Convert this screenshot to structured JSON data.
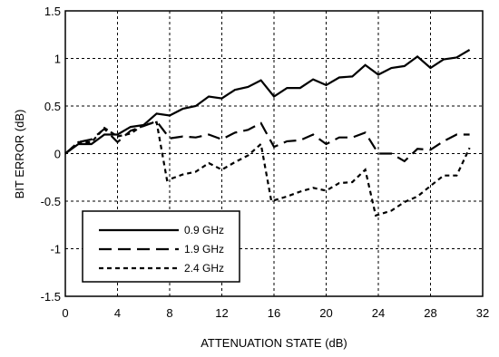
{
  "chart_data": {
    "type": "line",
    "xlabel": "ATTENUATION STATE (dB)",
    "ylabel": "BIT ERROR (dB)",
    "xlim": [
      0,
      32
    ],
    "ylim": [
      -1.5,
      1.5
    ],
    "xticks": [
      "0",
      "4",
      "8",
      "12",
      "16",
      "20",
      "24",
      "28",
      "32"
    ],
    "yticks": [
      "1.5",
      "1",
      "0.5",
      "0",
      "-0.5",
      "-1",
      "-1.5"
    ],
    "grid": true,
    "legend_position": "bottom-left",
    "series": [
      {
        "name": "0.9 GHz",
        "style": "solid",
        "color": "#000000",
        "x": [
          0,
          1,
          2,
          3,
          4,
          5,
          6,
          7,
          8,
          9,
          10,
          11,
          12,
          13,
          14,
          15,
          16,
          17,
          18,
          19,
          20,
          21,
          22,
          23,
          24,
          25,
          26,
          27,
          28,
          29,
          30,
          31
        ],
        "y": [
          0,
          0.1,
          0.1,
          0.2,
          0.2,
          0.28,
          0.3,
          0.42,
          0.4,
          0.47,
          0.5,
          0.6,
          0.58,
          0.67,
          0.7,
          0.77,
          0.6,
          0.69,
          0.69,
          0.78,
          0.72,
          0.8,
          0.81,
          0.93,
          0.83,
          0.9,
          0.92,
          1.02,
          0.9,
          0.99,
          1.01,
          1.09
        ]
      },
      {
        "name": "1.9 GHz",
        "style": "long-dash",
        "color": "#000000",
        "x": [
          0,
          1,
          2,
          3,
          4,
          5,
          6,
          7,
          8,
          9,
          10,
          11,
          12,
          13,
          14,
          15,
          16,
          17,
          18,
          19,
          20,
          21,
          22,
          23,
          24,
          25,
          26,
          27,
          28,
          29,
          30,
          31
        ],
        "y": [
          0,
          0.12,
          0.15,
          0.26,
          0.12,
          0.24,
          0.29,
          0.34,
          0.16,
          0.18,
          0.17,
          0.2,
          0.15,
          0.22,
          0.25,
          0.32,
          0.07,
          0.13,
          0.14,
          0.2,
          0.1,
          0.17,
          0.17,
          0.22,
          0,
          0,
          -0.08,
          0.05,
          0.04,
          0.13,
          0.2,
          0.2
        ]
      },
      {
        "name": "2.4 GHz",
        "style": "short-dash",
        "color": "#000000",
        "x": [
          0,
          1,
          2,
          3,
          4,
          5,
          6,
          7,
          7.8,
          9,
          10,
          11,
          12,
          13,
          14,
          15,
          15.8,
          17,
          18,
          19,
          20,
          21,
          22,
          23,
          23.8,
          25,
          26,
          27,
          28,
          29,
          30,
          31
        ],
        "y": [
          0,
          0.12,
          0.12,
          0.27,
          0.18,
          0.21,
          0.3,
          0.33,
          -0.28,
          -0.22,
          -0.19,
          -0.1,
          -0.17,
          -0.09,
          -0.02,
          0.1,
          -0.5,
          -0.45,
          -0.4,
          -0.36,
          -0.39,
          -0.31,
          -0.3,
          -0.17,
          -0.65,
          -0.6,
          -0.51,
          -0.45,
          -0.34,
          -0.23,
          -0.23,
          0.06
        ]
      }
    ]
  }
}
